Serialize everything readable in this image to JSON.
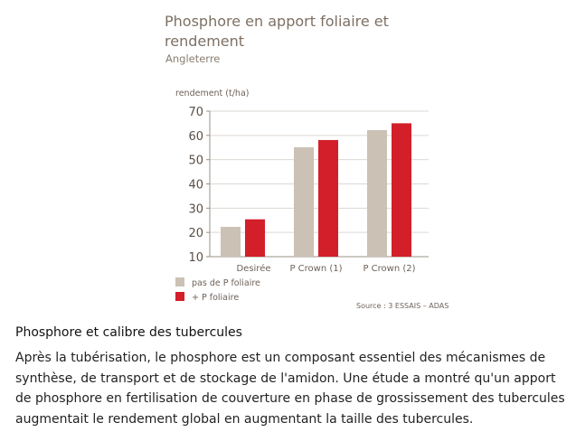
{
  "chart_data": {
    "type": "bar",
    "title": "Phosphore en apport foliaire et rendement",
    "subtitle": "Angleterre",
    "ylabel": "rendement (t/ha)",
    "xlabel": "",
    "ylim": [
      10,
      70
    ],
    "yticks": [
      10,
      20,
      30,
      40,
      50,
      60,
      70
    ],
    "grid": true,
    "categories": [
      "Desirée",
      "P Crown (1)",
      "P Crown (2)"
    ],
    "series": [
      {
        "name": "pas de P foliaire",
        "color": "#cbc1b5",
        "values": [
          22.3,
          55.1,
          62.2
        ]
      },
      {
        "name": "+ P foliaire",
        "color": "#d21f2a",
        "values": [
          25.4,
          58.1,
          65
        ]
      }
    ],
    "legend_position": "bottom-left",
    "source": "Source : 3 ESSAIS – ADAS"
  },
  "section": {
    "heading": "Phosphore et calibre des tubercules",
    "body": "Après la tubérisation, le phosphore est un composant essentiel des mécanismes de synthèse, de transport et de stockage de l'amidon. Une étude a montré qu'un apport de phosphore en fertilisation de couverture en phase de grossissement des tubercules augmentait le rendement global en augmentant la taille des tubercules."
  }
}
